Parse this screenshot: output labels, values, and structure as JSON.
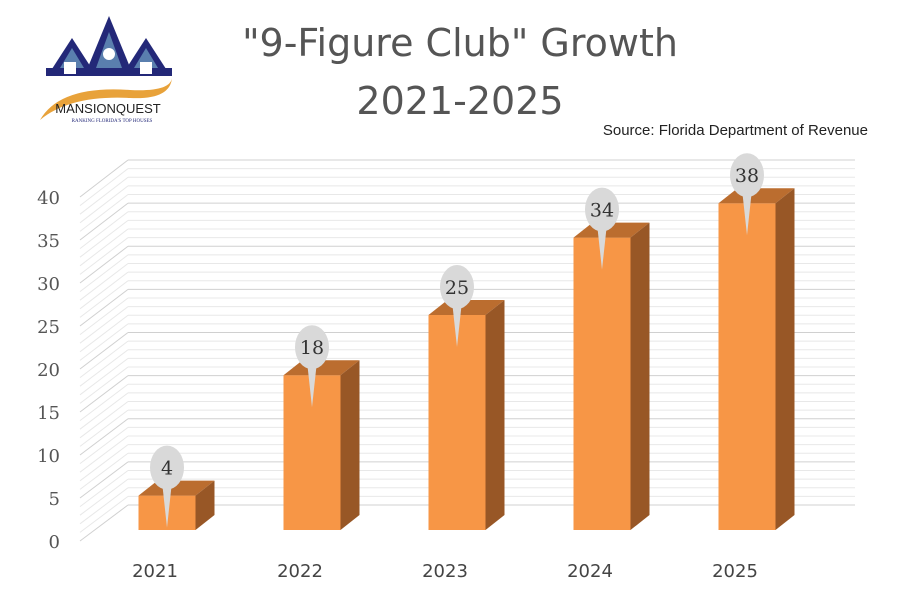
{
  "logo": {
    "name": "MANSIONQUEST",
    "tagline": "RANKING FLORIDA'S TOP HOUSES",
    "colors": {
      "navy": "#232878",
      "blue": "#5a7fae",
      "orange": "#e8a23a"
    }
  },
  "source": "Source: Florida Department of Revenue",
  "chart_data": {
    "type": "bar",
    "style": "3d-column",
    "title": "\"9-Figure Club\" Growth",
    "subtitle": "2021-2025",
    "categories": [
      "2021",
      "2022",
      "2023",
      "2024",
      "2025"
    ],
    "values": [
      4,
      18,
      25,
      34,
      38
    ],
    "ylim": [
      0,
      40
    ],
    "yticks": [
      "0",
      "5",
      "10",
      "15",
      "20",
      "25",
      "30",
      "35",
      "40"
    ],
    "grid": true,
    "data_labels": "callout-pins",
    "colors": {
      "bar_front": "#f79646",
      "bar_top": "#bb6d2f",
      "bar_side": "#985726",
      "label_bubble": "#d9d9d9",
      "grid": "#d0d0d0"
    }
  }
}
